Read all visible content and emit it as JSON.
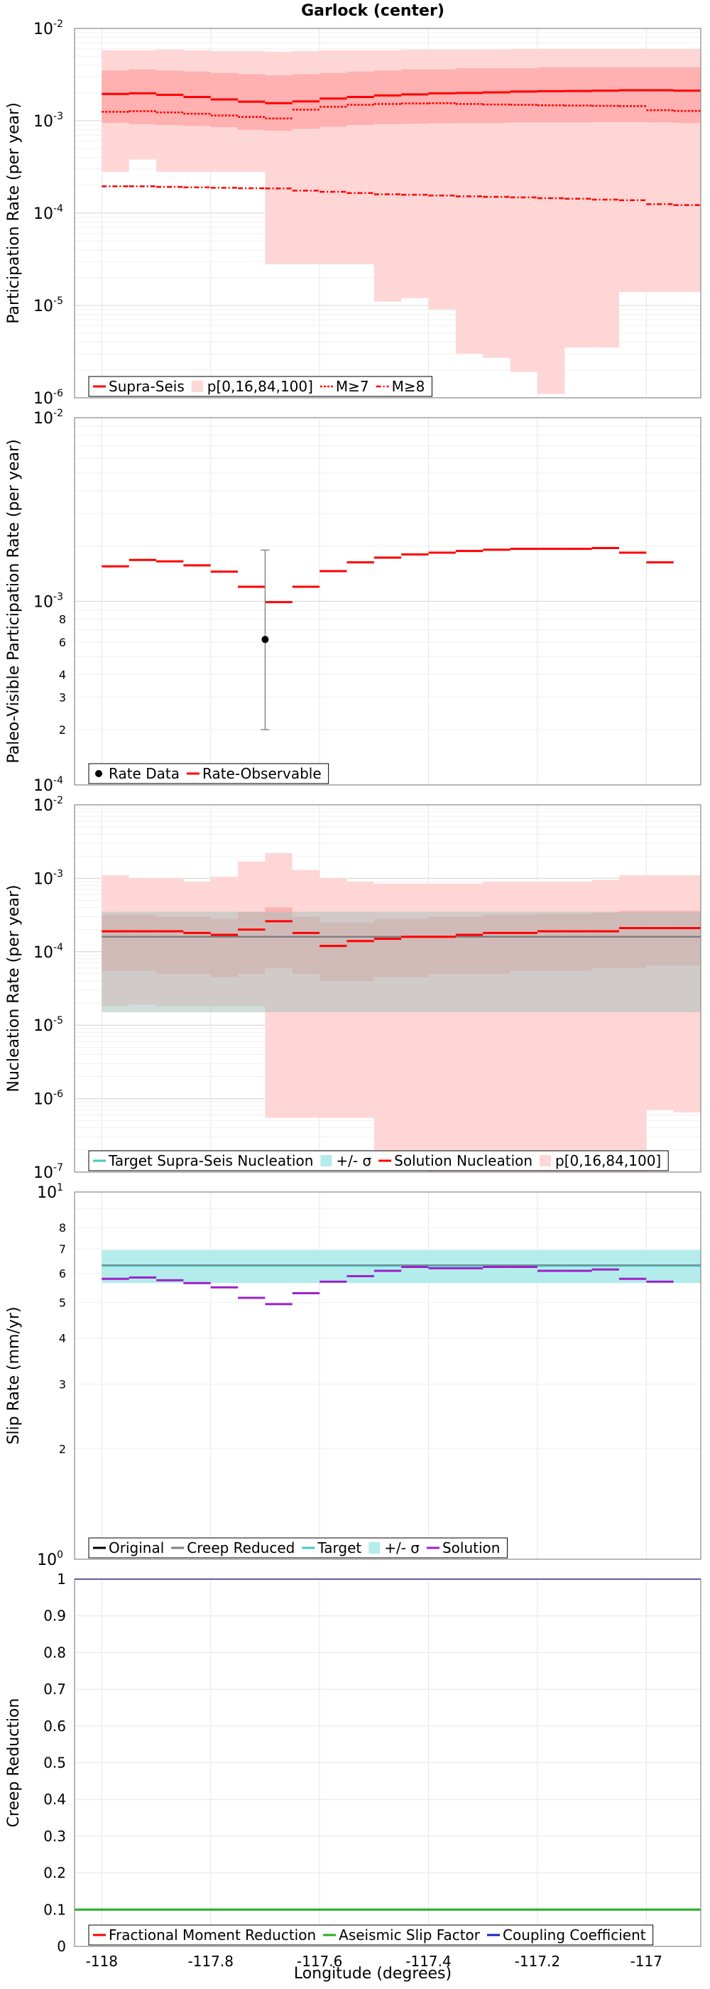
{
  "title": "Garlock (center)",
  "xlabel": "Longitude (degrees)",
  "x_ticks": [
    "-118",
    "-117.8",
    "-117.6",
    "-117.4",
    "-117.2",
    "-117"
  ],
  "colors": {
    "red": "#ff0000",
    "pink_light": "#ffd6d6",
    "pink_mid": "#ffb0b0",
    "gray_band": "#a9c3bd",
    "gray_line": "#808080",
    "cyan": "#40c8c8",
    "cyan_band": "#b4ecec",
    "purple": "#9b22c8",
    "green": "#22b022",
    "blue": "#1c1cc8"
  },
  "chart_data": [
    {
      "type": "line",
      "ylabel": "Participation Rate (per year)",
      "log": true,
      "ylim": [
        1e-06,
        0.01
      ],
      "ytick_labels": [
        "10^-6",
        "10^-5",
        "10^-4",
        "10^-3",
        "10^-2"
      ],
      "legend": [
        "Supra-Seis",
        "p[0,16,84,100]",
        "M≥7",
        "M≥8"
      ],
      "legend_position": "bottom-left",
      "x_edges": [
        -118.0,
        -117.95,
        -117.9,
        -117.85,
        -117.8,
        -117.75,
        -117.7,
        -117.65,
        -117.6,
        -117.55,
        -117.5,
        -117.45,
        -117.4,
        -117.35,
        -117.3,
        -117.25,
        -117.2,
        -117.15,
        -117.1,
        -117.05,
        -117.0,
        -116.95,
        -116.9
      ],
      "supra_seis": [
        0.00195,
        0.00198,
        0.00191,
        0.00181,
        0.0017,
        0.00161,
        0.00155,
        0.00162,
        0.00174,
        0.00181,
        0.00188,
        0.00193,
        0.00198,
        0.002,
        0.00203,
        0.00207,
        0.00209,
        0.0021,
        0.00212,
        0.00214,
        0.00214,
        0.00212
      ],
      "m7": [
        0.00125,
        0.00127,
        0.00123,
        0.00119,
        0.00114,
        0.0011,
        0.00106,
        0.00132,
        0.00142,
        0.00149,
        0.00152,
        0.00154,
        0.00155,
        0.00152,
        0.0015,
        0.00149,
        0.00147,
        0.00146,
        0.00145,
        0.00144,
        0.0013,
        0.00128
      ],
      "m8": [
        0.000195,
        0.000195,
        0.000192,
        0.00019,
        0.000188,
        0.000186,
        0.000185,
        0.000175,
        0.00017,
        0.000165,
        0.00016,
        0.000158,
        0.000155,
        0.000152,
        0.00015,
        0.000148,
        0.000145,
        0.000143,
        0.00014,
        0.000138,
        0.000125,
        0.000122
      ],
      "p0": [
        0.00028,
        0.00038,
        0.00028,
        0.00028,
        0.00028,
        0.00028,
        2.8e-05,
        2.8e-05,
        2.8e-05,
        2.8e-05,
        1.1e-05,
        1.2e-05,
        9e-06,
        3e-06,
        2.7e-06,
        1.9e-06,
        1.1e-06,
        3.5e-06,
        3.5e-06,
        1.4e-05,
        1.4e-05,
        1.4e-05
      ],
      "p16": [
        0.00095,
        0.00092,
        0.0009,
        0.00088,
        0.00085,
        0.0008,
        0.00078,
        0.00082,
        0.00086,
        0.0009,
        0.00092,
        0.00093,
        0.00094,
        0.00095,
        0.00095,
        0.00096,
        0.00096,
        0.00096,
        0.00097,
        0.00097,
        0.00096,
        0.00095
      ],
      "p84": [
        0.0035,
        0.0036,
        0.0035,
        0.0034,
        0.0033,
        0.0032,
        0.0031,
        0.0032,
        0.0033,
        0.0034,
        0.0035,
        0.0036,
        0.0036,
        0.0037,
        0.0037,
        0.0037,
        0.0038,
        0.0038,
        0.0038,
        0.0038,
        0.0038,
        0.0038
      ],
      "p100": [
        0.0058,
        0.0058,
        0.0059,
        0.0058,
        0.0057,
        0.0057,
        0.0056,
        0.0057,
        0.0058,
        0.0058,
        0.0058,
        0.0059,
        0.0059,
        0.0059,
        0.0059,
        0.006,
        0.006,
        0.006,
        0.006,
        0.006,
        0.006,
        0.006
      ]
    },
    {
      "type": "line",
      "ylabel": "Paleo-Visible Participation Rate (per year)",
      "log": true,
      "ylim": [
        0.0001,
        0.01
      ],
      "ytick_labels": [
        "10^-4",
        "10^-3",
        "10^-2"
      ],
      "minor_tick_labels": [
        "2",
        "3",
        "4",
        "6",
        "8"
      ],
      "legend": [
        "Rate Data",
        "Rate-Observable"
      ],
      "legend_position": "bottom-left",
      "rate_observable": [
        0.00155,
        0.00168,
        0.00165,
        0.00157,
        0.00145,
        0.0012,
        0.00099,
        0.0012,
        0.00146,
        0.00163,
        0.00173,
        0.0018,
        0.00184,
        0.00188,
        0.00191,
        0.00193,
        0.00193,
        0.00193,
        0.00195,
        0.00184,
        0.00163
      ],
      "rate_data": {
        "x": -117.7,
        "y": 0.00062,
        "lower": 0.0002,
        "upper": 0.0019
      }
    },
    {
      "type": "line",
      "ylabel": "Nucleation Rate (per year)",
      "log": true,
      "ylim": [
        1e-07,
        0.01
      ],
      "ytick_labels": [
        "10^-7",
        "10^-6",
        "10^-5",
        "10^-4",
        "10^-3",
        "10^-2"
      ],
      "legend": [
        "Target Supra-Seis Nucleation",
        "+/- σ",
        "Solution Nucleation",
        "p[0,16,84,100]"
      ],
      "legend_position": "bottom-left",
      "target": 0.00016,
      "sigma_lower": 1.5e-05,
      "sigma_upper": 0.00035,
      "solution": [
        0.00019,
        0.00019,
        0.00019,
        0.00018,
        0.00017,
        0.0002,
        0.00026,
        0.00018,
        0.00012,
        0.00014,
        0.00015,
        0.00016,
        0.00016,
        0.00017,
        0.00018,
        0.00018,
        0.00019,
        0.00019,
        0.00019,
        0.00021,
        0.00021,
        0.00021
      ],
      "p0": [
        1.8e-05,
        1.9e-05,
        1.8e-05,
        1.8e-05,
        1.8e-05,
        1.8e-05,
        5.5e-07,
        5.5e-07,
        5.5e-07,
        5.5e-07,
        1.1e-07,
        1.1e-07,
        1e-07,
        1e-07,
        1e-07,
        1e-07,
        1e-07,
        1e-07,
        1e-07,
        1e-07,
        7e-07,
        6.5e-07
      ],
      "p16": [
        5.5e-05,
        5.5e-05,
        5e-05,
        5e-05,
        4.5e-05,
        5e-05,
        6e-05,
        5e-05,
        4e-05,
        4e-05,
        4.5e-05,
        4.5e-05,
        5e-05,
        5e-05,
        5e-05,
        5.5e-05,
        5.5e-05,
        5.5e-05,
        6e-05,
        6e-05,
        6.5e-05,
        6.5e-05
      ],
      "p84": [
        0.00032,
        0.00032,
        0.0003,
        0.0003,
        0.00028,
        0.00035,
        0.0004,
        0.0003,
        0.00025,
        0.00025,
        0.00028,
        0.00028,
        0.0003,
        0.0003,
        0.00032,
        0.00032,
        0.00033,
        0.00033,
        0.00034,
        0.00036,
        0.00036,
        0.00036
      ],
      "p100": [
        0.0011,
        0.001,
        0.001,
        0.0009,
        0.00105,
        0.0017,
        0.0022,
        0.0013,
        0.001,
        0.0009,
        0.00085,
        0.00085,
        0.00085,
        0.00085,
        0.0009,
        0.0009,
        0.0009,
        0.0009,
        0.00095,
        0.0011,
        0.0011,
        0.0011
      ]
    },
    {
      "type": "line",
      "ylabel": "Slip Rate (mm/yr)",
      "log": true,
      "ylim": [
        1,
        10
      ],
      "ytick_labels": [
        "10^0",
        "10^1"
      ],
      "minor_tick_labels": [
        "2",
        "3",
        "4",
        "5",
        "6",
        "7",
        "8"
      ],
      "legend": [
        "Original",
        "Creep Reduced",
        "Target",
        "+/- σ",
        "Solution"
      ],
      "legend_position": "bottom-left",
      "target": 6.3,
      "sigma_lower": 5.65,
      "sigma_upper": 6.95,
      "solution": [
        5.8,
        5.85,
        5.75,
        5.65,
        5.5,
        5.15,
        4.95,
        5.3,
        5.7,
        5.9,
        6.1,
        6.25,
        6.2,
        6.2,
        6.25,
        6.25,
        6.1,
        6.1,
        6.15,
        5.8,
        5.7
      ]
    },
    {
      "type": "line",
      "ylabel": "Creep Reduction",
      "log": false,
      "ylim": [
        0,
        1
      ],
      "ytick_labels": [
        "0",
        "0.1",
        "0.2",
        "0.3",
        "0.4",
        "0.5",
        "0.6",
        "0.7",
        "0.8",
        "0.9",
        "1"
      ],
      "legend": [
        "Fractional Moment Reduction",
        "Aseismic Slip Factor",
        "Coupling Coefficient"
      ],
      "legend_position": "bottom-left",
      "fractional_moment_reduction": 0.1,
      "aseismic_slip_factor": 0.1,
      "coupling_coefficient": 1.0
    }
  ]
}
